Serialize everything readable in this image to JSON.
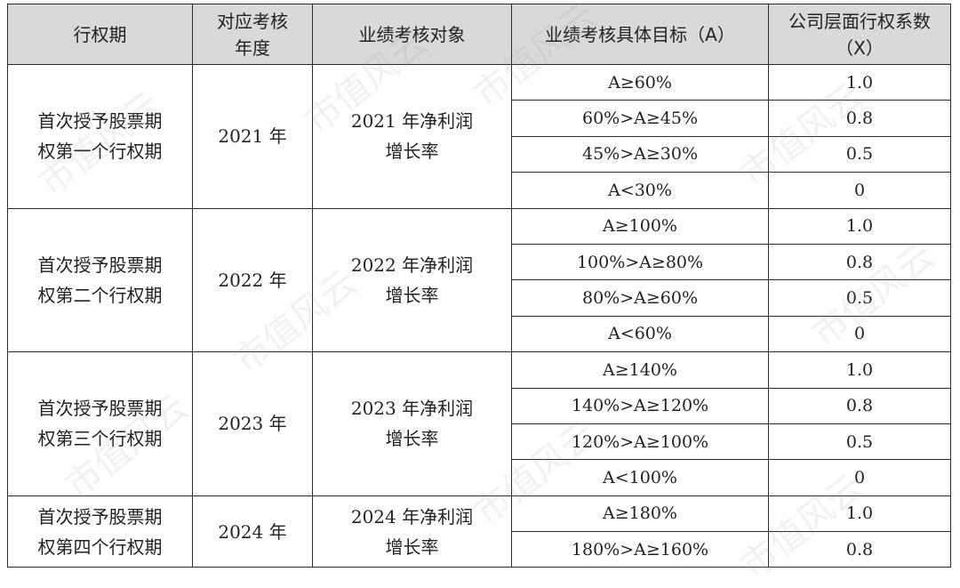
{
  "headers": [
    [
      "行权期"
    ],
    [
      "对应考核",
      "年度"
    ],
    [
      "业绩考核对象"
    ],
    [
      "业绩考核具体目标（A）"
    ],
    [
      "公司层面行权系数",
      "（X）"
    ]
  ],
  "periods": [
    {
      "name": [
        "首次授予股票期",
        "权第一个行权期"
      ],
      "year": "2021 年",
      "target": [
        "2021 年净利润",
        "增长率"
      ],
      "tiers": [
        {
          "goal": "A≥60%",
          "coef": "1.0"
        },
        {
          "goal": "60%>A≥45%",
          "coef": "0.8"
        },
        {
          "goal": "45%>A≥30%",
          "coef": "0.5"
        },
        {
          "goal": "A<30%",
          "coef": "0"
        }
      ]
    },
    {
      "name": [
        "首次授予股票期",
        "权第二个行权期"
      ],
      "year": "2022 年",
      "target": [
        "2022 年净利润",
        "增长率"
      ],
      "tiers": [
        {
          "goal": "A≥100%",
          "coef": "1.0"
        },
        {
          "goal": "100%>A≥80%",
          "coef": "0.8"
        },
        {
          "goal": "80%>A≥60%",
          "coef": "0.5"
        },
        {
          "goal": "A<60%",
          "coef": "0"
        }
      ]
    },
    {
      "name": [
        "首次授予股票期",
        "权第三个行权期"
      ],
      "year": "2023 年",
      "target": [
        "2023 年净利润",
        "增长率"
      ],
      "tiers": [
        {
          "goal": "A≥140%",
          "coef": "1.0"
        },
        {
          "goal": "140%>A≥120%",
          "coef": "0.8"
        },
        {
          "goal": "120%>A≥100%",
          "coef": "0.5"
        },
        {
          "goal": "A<100%",
          "coef": "0"
        }
      ]
    },
    {
      "name": [
        "首次授予股票期",
        "权第四个行权期"
      ],
      "year": "2024 年",
      "target": [
        "2024 年净利润",
        "增长率"
      ],
      "tiers": [
        {
          "goal": "A≥180%",
          "coef": "1.0"
        },
        {
          "goal": "180%>A≥160%",
          "coef": "0.8"
        }
      ]
    }
  ],
  "watermark": "市值风云"
}
